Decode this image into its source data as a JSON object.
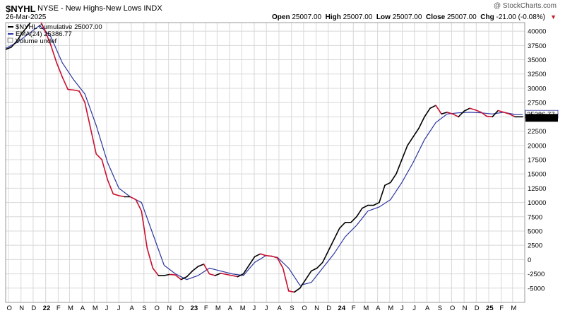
{
  "header": {
    "symbol": "$NYHL",
    "description": "NYSE - New Highs-New Lows INDX",
    "date": "26-Mar-2025",
    "brand": "@ StockCharts.com",
    "open_label": "Open",
    "open": "25007.00",
    "high_label": "High",
    "high": "25007.00",
    "low_label": "Low",
    "low": "25007.00",
    "close_label": "Close",
    "close": "25007.00",
    "chg_label": "Chg",
    "chg": "-21.00 (-0.08%)"
  },
  "legend": {
    "line1": "$NYHL Cumulative 25007.00",
    "line2": "EMA(24) 25386.77",
    "line3": "Volume undef"
  },
  "price_tags": {
    "ema": "25386.77",
    "last": "25007.00"
  },
  "colors": {
    "up": "#000000",
    "down": "#c8102e",
    "ema": "#2b35a0",
    "grid": "#d8d8d8",
    "last_tag_bg": "#000000"
  },
  "chart_data": {
    "type": "line",
    "title": "$NYHL NYSE - New Highs-New Lows INDX",
    "ylim": [
      -7500,
      41500
    ],
    "y_ticks": [
      40000,
      37500,
      35000,
      32500,
      30000,
      27500,
      25000,
      22500,
      20000,
      17500,
      15000,
      12500,
      10000,
      7500,
      5000,
      2500,
      0,
      -2500,
      -5000
    ],
    "x_tick_labels": [
      "O",
      "N",
      "D",
      "22",
      "F",
      "M",
      "A",
      "M",
      "J",
      "J",
      "A",
      "S",
      "O",
      "N",
      "D",
      "23",
      "F",
      "M",
      "A",
      "M",
      "J",
      "J",
      "A",
      "S",
      "O",
      "N",
      "D",
      "24",
      "F",
      "M",
      "A",
      "M",
      "J",
      "J",
      "A",
      "S",
      "O",
      "N",
      "D",
      "25",
      "F",
      "M"
    ],
    "series": [
      {
        "name": "$NYHL Cumulative",
        "x": [
          "2021-09-24",
          "2021-10-08",
          "2021-10-22",
          "2021-11-05",
          "2021-11-19",
          "2021-12-03",
          "2021-12-17",
          "2021-12-31",
          "2022-01-14",
          "2022-01-28",
          "2022-02-11",
          "2022-02-25",
          "2022-03-11",
          "2022-03-25",
          "2022-04-08",
          "2022-04-22",
          "2022-05-06",
          "2022-05-20",
          "2022-06-03",
          "2022-06-17",
          "2022-07-01",
          "2022-07-15",
          "2022-07-29",
          "2022-08-12",
          "2022-08-26",
          "2022-09-09",
          "2022-09-23",
          "2022-10-07",
          "2022-10-21",
          "2022-11-04",
          "2022-11-18",
          "2022-12-02",
          "2022-12-16",
          "2022-12-30",
          "2023-01-13",
          "2023-01-27",
          "2023-02-10",
          "2023-02-24",
          "2023-03-10",
          "2023-03-24",
          "2023-04-07",
          "2023-04-21",
          "2023-05-05",
          "2023-05-19",
          "2023-06-02",
          "2023-06-16",
          "2023-06-30",
          "2023-07-14",
          "2023-07-28",
          "2023-08-11",
          "2023-08-25",
          "2023-09-08",
          "2023-09-22",
          "2023-10-06",
          "2023-10-20",
          "2023-11-03",
          "2023-11-17",
          "2023-12-01",
          "2023-12-15",
          "2023-12-29",
          "2024-01-12",
          "2024-01-26",
          "2024-02-09",
          "2024-02-23",
          "2024-03-08",
          "2024-03-22",
          "2024-04-05",
          "2024-04-19",
          "2024-05-03",
          "2024-05-17",
          "2024-05-31",
          "2024-06-14",
          "2024-06-28",
          "2024-07-12",
          "2024-07-26",
          "2024-08-09",
          "2024-08-23",
          "2024-09-06",
          "2024-09-20",
          "2024-10-04",
          "2024-10-18",
          "2024-11-01",
          "2024-11-15",
          "2024-11-29",
          "2024-12-13",
          "2024-12-27",
          "2025-01-10",
          "2025-01-24",
          "2025-02-07",
          "2025-02-21",
          "2025-03-07",
          "2025-03-26"
        ],
        "values": [
          36800,
          37200,
          38300,
          39800,
          41000,
          42500,
          42000,
          40000,
          37500,
          34500,
          32000,
          29800,
          29700,
          29500,
          27500,
          23000,
          18500,
          17500,
          14000,
          11500,
          11200,
          11000,
          11000,
          10500,
          8500,
          2000,
          -1500,
          -2800,
          -2800,
          -2600,
          -2700,
          -3500,
          -3000,
          -2000,
          -1200,
          -800,
          -2500,
          -2800,
          -2400,
          -2600,
          -2800,
          -3000,
          -2500,
          -1000,
          500,
          1000,
          700,
          600,
          300,
          -1500,
          -5500,
          -5700,
          -5000,
          -3500,
          -2000,
          -1500,
          -500,
          1500,
          3500,
          5500,
          6500,
          6500,
          7500,
          9000,
          9500,
          9500,
          10000,
          13000,
          13500,
          15000,
          17500,
          20000,
          21500,
          23000,
          25000,
          26500,
          27000,
          25500,
          25800,
          25500,
          25000,
          26000,
          26500,
          26200,
          25800,
          25100,
          25007,
          26100,
          25800,
          25500,
          25000,
          25007
        ]
      },
      {
        "name": "EMA(24)",
        "x": [
          "2021-09-24",
          "2021-10-22",
          "2021-11-19",
          "2021-12-17",
          "2022-01-14",
          "2022-02-11",
          "2022-03-11",
          "2022-04-08",
          "2022-05-06",
          "2022-06-03",
          "2022-07-01",
          "2022-07-29",
          "2022-08-26",
          "2022-09-23",
          "2022-10-21",
          "2022-11-18",
          "2022-12-16",
          "2023-01-13",
          "2023-02-10",
          "2023-03-10",
          "2023-04-07",
          "2023-05-05",
          "2023-06-02",
          "2023-06-30",
          "2023-07-28",
          "2023-08-25",
          "2023-09-22",
          "2023-10-20",
          "2023-11-17",
          "2023-12-15",
          "2024-01-12",
          "2024-02-09",
          "2024-03-08",
          "2024-04-05",
          "2024-05-03",
          "2024-05-31",
          "2024-06-28",
          "2024-07-26",
          "2024-08-23",
          "2024-09-20",
          "2024-10-18",
          "2024-11-15",
          "2024-12-13",
          "2025-01-10",
          "2025-02-07",
          "2025-03-07",
          "2025-03-26"
        ],
        "values": [
          37000,
          38000,
          39500,
          41000,
          39000,
          34500,
          31500,
          29000,
          23500,
          17000,
          12500,
          11000,
          10000,
          4500,
          -1000,
          -2500,
          -3500,
          -2800,
          -1500,
          -2000,
          -2500,
          -2800,
          -500,
          700,
          400,
          -1500,
          -4500,
          -4000,
          -1500,
          1000,
          4000,
          6000,
          8500,
          9200,
          10500,
          13500,
          17000,
          21000,
          24000,
          25500,
          25700,
          25800,
          25700,
          25500,
          25800,
          25400,
          25387
        ]
      }
    ]
  }
}
